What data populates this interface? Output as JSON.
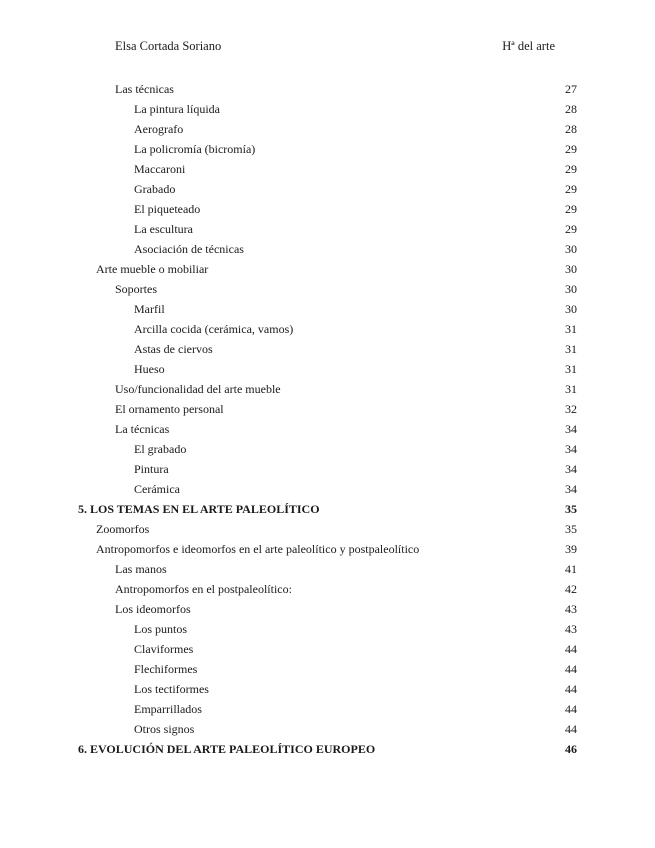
{
  "header": {
    "author": "Elsa Cortada Soriano",
    "subject": "Hª del arte"
  },
  "toc": [
    {
      "level": 2,
      "title": "Las técnicas",
      "page": "27"
    },
    {
      "level": 3,
      "title": "La pintura líquida",
      "page": "28"
    },
    {
      "level": 3,
      "title": "Aerografo",
      "page": "28"
    },
    {
      "level": 3,
      "title": "La policromía (bicromía)",
      "page": "29"
    },
    {
      "level": 3,
      "title": "Maccaroni",
      "page": "29"
    },
    {
      "level": 3,
      "title": "Grabado",
      "page": "29"
    },
    {
      "level": 3,
      "title": "El piqueteado",
      "page": "29"
    },
    {
      "level": 3,
      "title": "La escultura",
      "page": "29"
    },
    {
      "level": 3,
      "title": "Asociación de técnicas",
      "page": "30"
    },
    {
      "level": 1,
      "title": "Arte mueble o mobiliar",
      "page": "30"
    },
    {
      "level": 2,
      "title": "Soportes",
      "page": "30"
    },
    {
      "level": 3,
      "title": "Marfil",
      "page": "30"
    },
    {
      "level": 3,
      "title": "Arcilla cocida (cerámica, vamos)",
      "page": "31"
    },
    {
      "level": 3,
      "title": "Astas de ciervos",
      "page": "31"
    },
    {
      "level": 3,
      "title": "Hueso",
      "page": "31"
    },
    {
      "level": 2,
      "title": "Uso/funcionalidad del arte mueble",
      "page": "31"
    },
    {
      "level": 2,
      "title": "El ornamento personal",
      "page": "32"
    },
    {
      "level": 2,
      "title": "La técnicas",
      "page": "34"
    },
    {
      "level": 3,
      "title": "El grabado",
      "page": "34"
    },
    {
      "level": 3,
      "title": "Pintura",
      "page": "34"
    },
    {
      "level": 3,
      "title": "Cerámica",
      "page": "34"
    },
    {
      "level": 0,
      "title": "5. LOS TEMAS EN EL ARTE PALEOLÍTICO",
      "page": "35"
    },
    {
      "level": 1,
      "title": "Zoomorfos",
      "page": "35"
    },
    {
      "level": 1,
      "title": "Antropomorfos e ideomorfos en el arte paleolítico y postpaleolítico",
      "page": "39"
    },
    {
      "level": 2,
      "title": "Las manos",
      "page": "41"
    },
    {
      "level": 2,
      "title": "Antropomorfos en el postpaleolítico:",
      "page": "42"
    },
    {
      "level": 2,
      "title": "Los ideomorfos",
      "page": "43"
    },
    {
      "level": 3,
      "title": "Los puntos",
      "page": "43"
    },
    {
      "level": 3,
      "title": "Claviformes",
      "page": "44"
    },
    {
      "level": 3,
      "title": "Flechiformes",
      "page": "44"
    },
    {
      "level": 3,
      "title": "Los tectiformes",
      "page": "44"
    },
    {
      "level": 3,
      "title": "Emparrillados",
      "page": "44"
    },
    {
      "level": 3,
      "title": "Otros signos",
      "page": "44"
    },
    {
      "level": 0,
      "title": "6. EVOLUCIÓN DEL ARTE PALEOLÍTICO EUROPEO",
      "page": "46"
    }
  ]
}
